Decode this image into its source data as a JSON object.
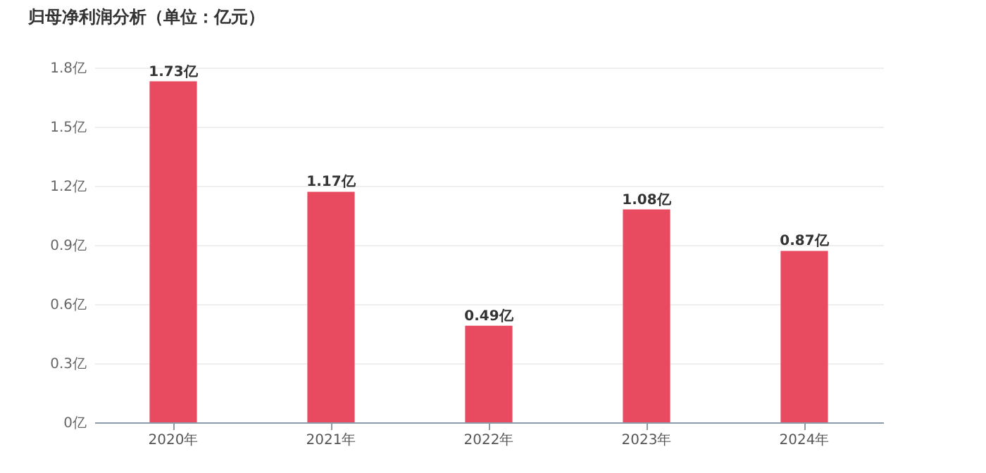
{
  "chart_data": {
    "type": "bar",
    "title": "归母净利润分析（单位：亿元）",
    "categories": [
      "2020年",
      "2021年",
      "2022年",
      "2023年",
      "2024年"
    ],
    "values": [
      1.73,
      1.17,
      0.49,
      1.08,
      0.87
    ],
    "value_labels": [
      "1.73亿",
      "1.17亿",
      "0.49亿",
      "1.08亿",
      "0.87亿"
    ],
    "color": "#e84a5f",
    "ylim": [
      0,
      1.8
    ],
    "yticks": [
      {
        "value": 0,
        "label": "0亿"
      },
      {
        "value": 0.3,
        "label": "0.3亿"
      },
      {
        "value": 0.6,
        "label": "0.6亿"
      },
      {
        "value": 0.9,
        "label": "0.9亿"
      },
      {
        "value": 1.2,
        "label": "1.2亿"
      },
      {
        "value": 1.5,
        "label": "1.5亿"
      },
      {
        "value": 1.8,
        "label": "1.8亿"
      }
    ],
    "grid": "y"
  }
}
